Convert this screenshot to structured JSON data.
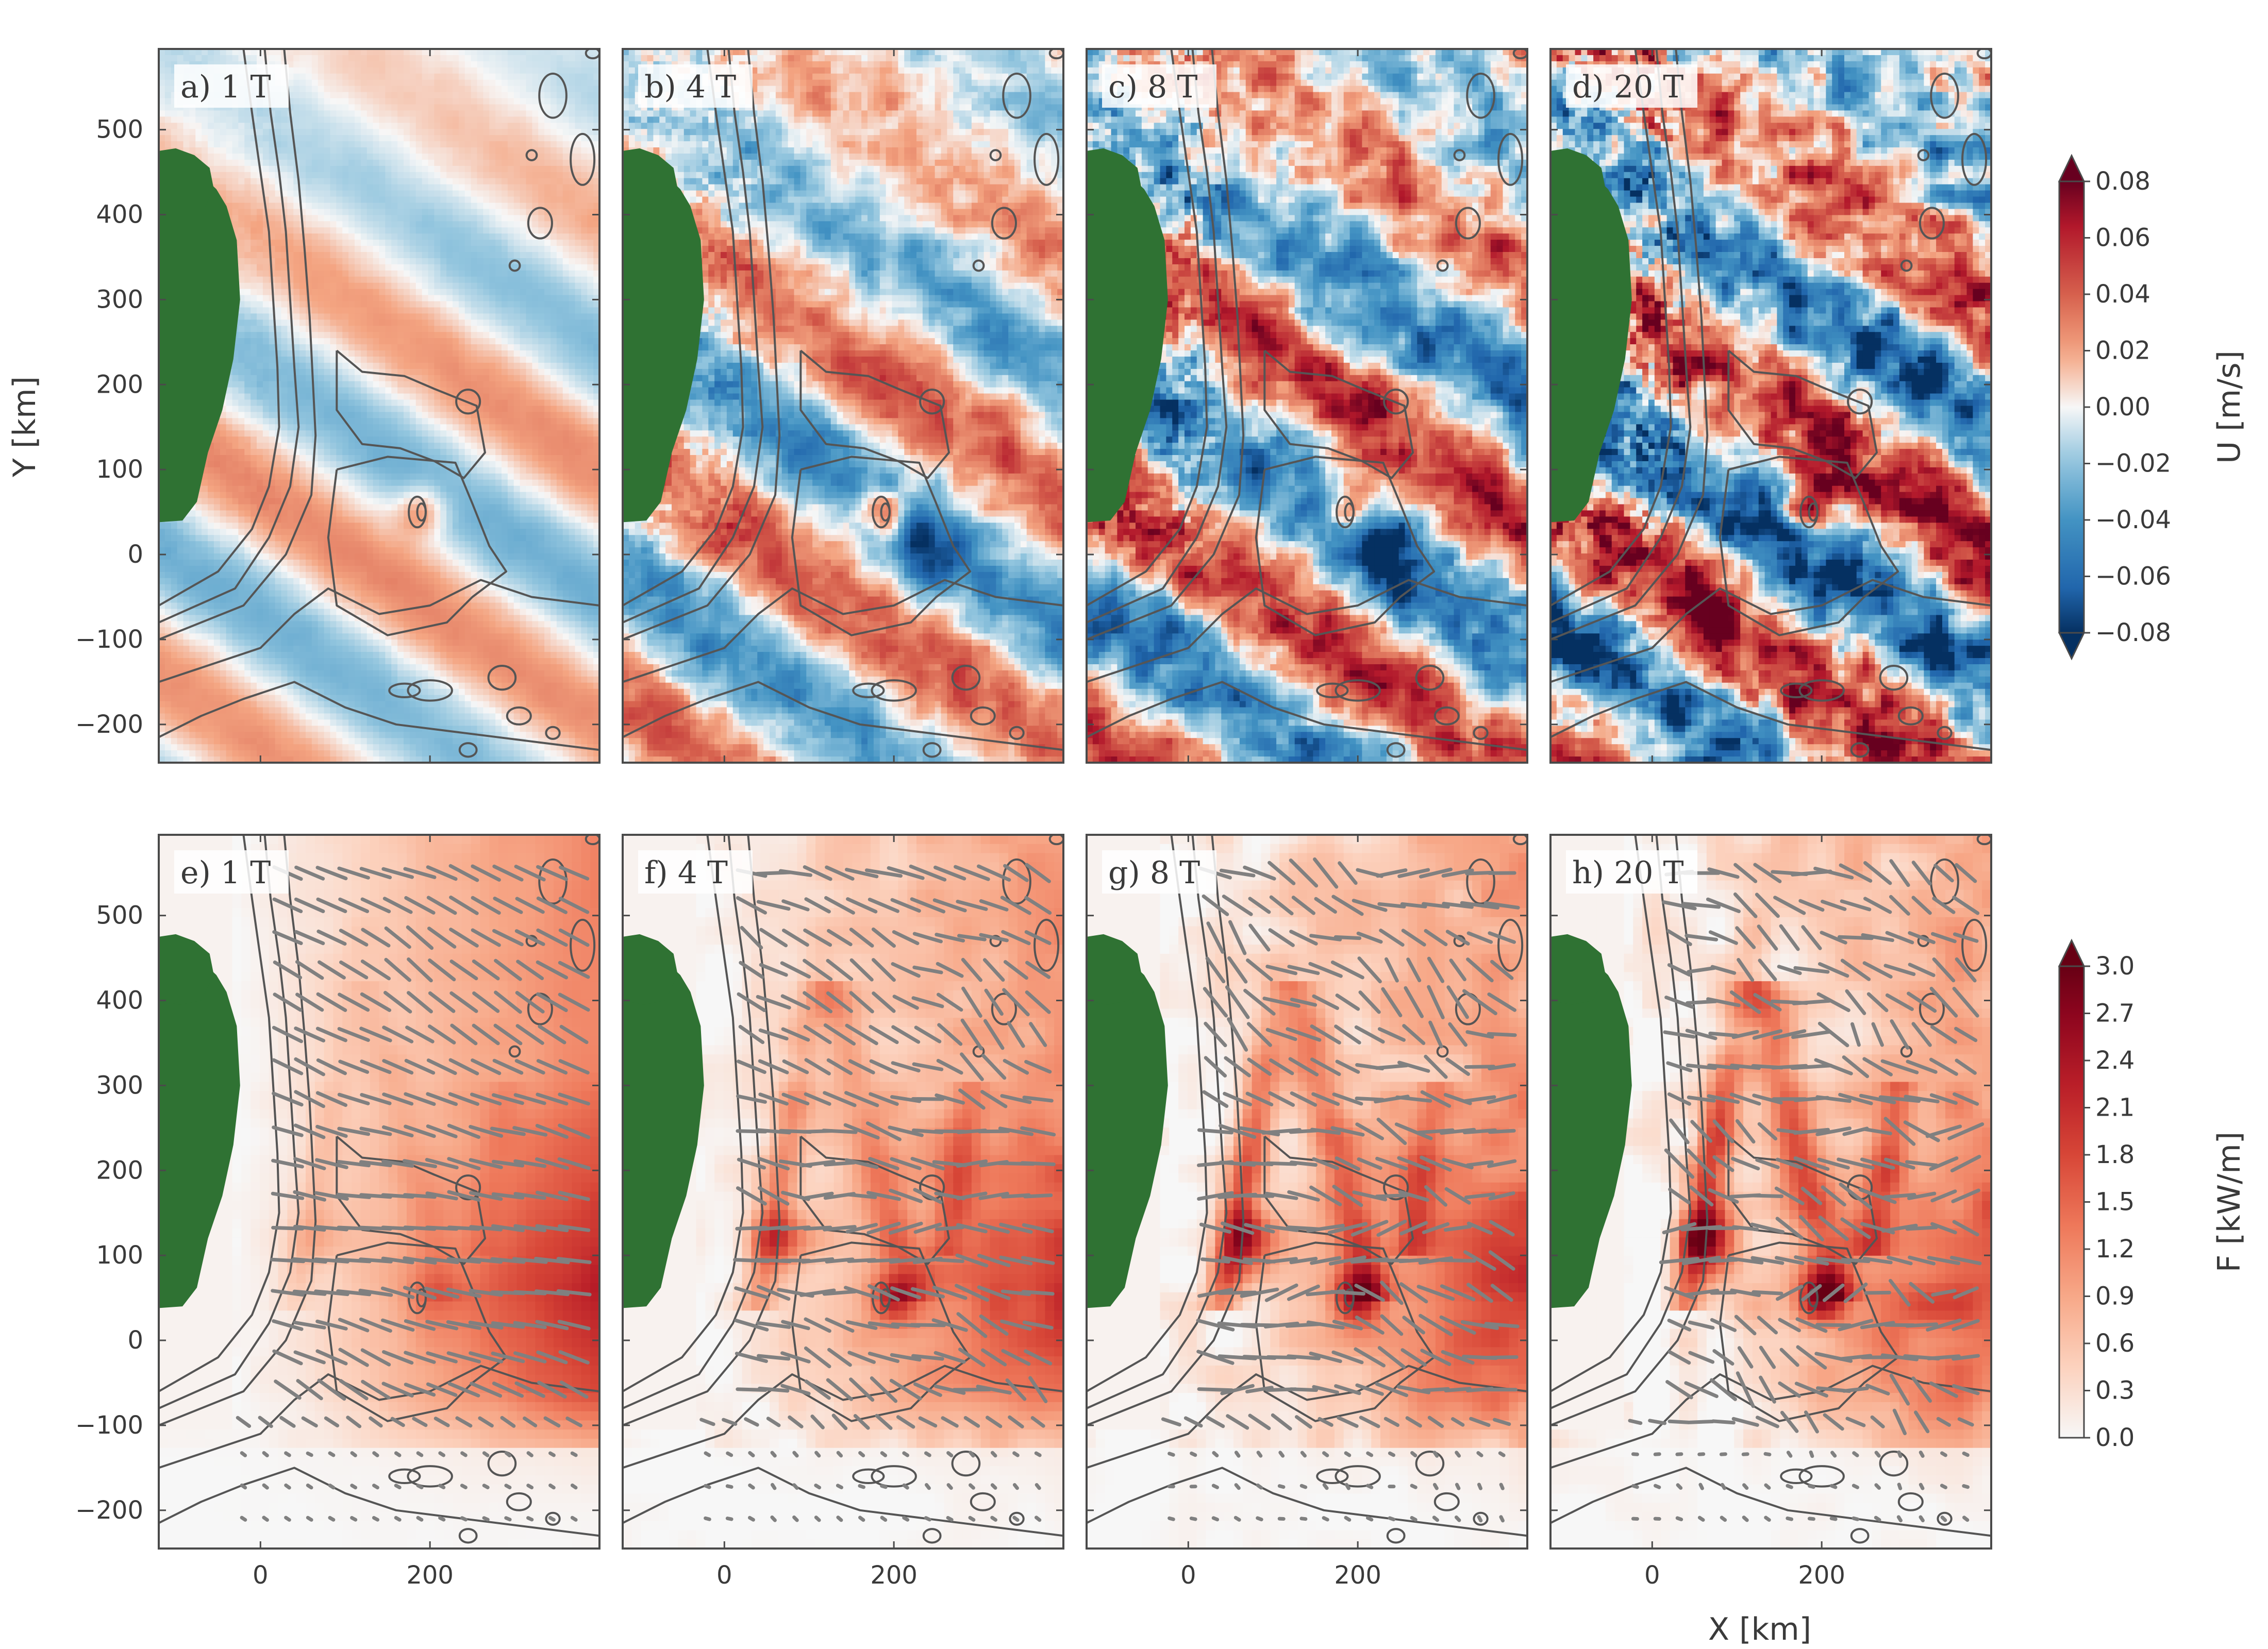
{
  "chart_data": {
    "type": "heatmap",
    "layout": "2 rows x 4 columns",
    "x_axis": {
      "label": "X [km]",
      "range": [
        -120,
        400
      ],
      "ticks": [
        0,
        200
      ]
    },
    "y_axis": {
      "label": "Y [km]",
      "range": [
        -245,
        595
      ],
      "ticks": [
        500,
        400,
        300,
        200,
        100,
        0,
        -100,
        -200
      ]
    },
    "rows": [
      {
        "field": "U",
        "colorbar": {
          "label": "U [m/s]",
          "range": [
            -0.08,
            0.08
          ],
          "ticks": [
            "0.08",
            "0.06",
            "0.04",
            "0.02",
            "0.00",
            "−0.02",
            "−0.04",
            "−0.06",
            "−0.08"
          ],
          "colormap": "RdBu_r",
          "extend": "both",
          "colors": {
            "min": "#0a3d7a",
            "mid": "#f7f7f7",
            "max": "#7a0a16"
          }
        },
        "panels": [
          {
            "label": "a) 1 T",
            "amplitude": 0.35,
            "noise": 0.05
          },
          {
            "label": "b) 4 T",
            "amplitude": 0.55,
            "noise": 0.35
          },
          {
            "label": "c) 8 T",
            "amplitude": 0.75,
            "noise": 0.6
          },
          {
            "label": "d) 20 T",
            "amplitude": 0.85,
            "noise": 0.85
          }
        ]
      },
      {
        "field": "F",
        "colorbar": {
          "label": "F [kW/m]",
          "range": [
            0,
            3.0
          ],
          "ticks": [
            "3.0",
            "2.7",
            "2.4",
            "2.1",
            "1.8",
            "1.5",
            "1.2",
            "0.9",
            "0.6",
            "0.3",
            "0.0"
          ],
          "colormap": "Reds",
          "extend": "max",
          "colors": {
            "min": "#f7f7f7",
            "max": "#6a0012"
          }
        },
        "panels": [
          {
            "label": "e) 1 T",
            "beams": 0.2
          },
          {
            "label": "f) 4 T",
            "beams": 0.6
          },
          {
            "label": "g) 8 T",
            "beams": 0.85
          },
          {
            "label": "h) 20 T",
            "beams": 1.0
          }
        ]
      }
    ],
    "land_color": "#2f7233",
    "contour_color": "#555555",
    "flux_vector_color": "#808080"
  }
}
